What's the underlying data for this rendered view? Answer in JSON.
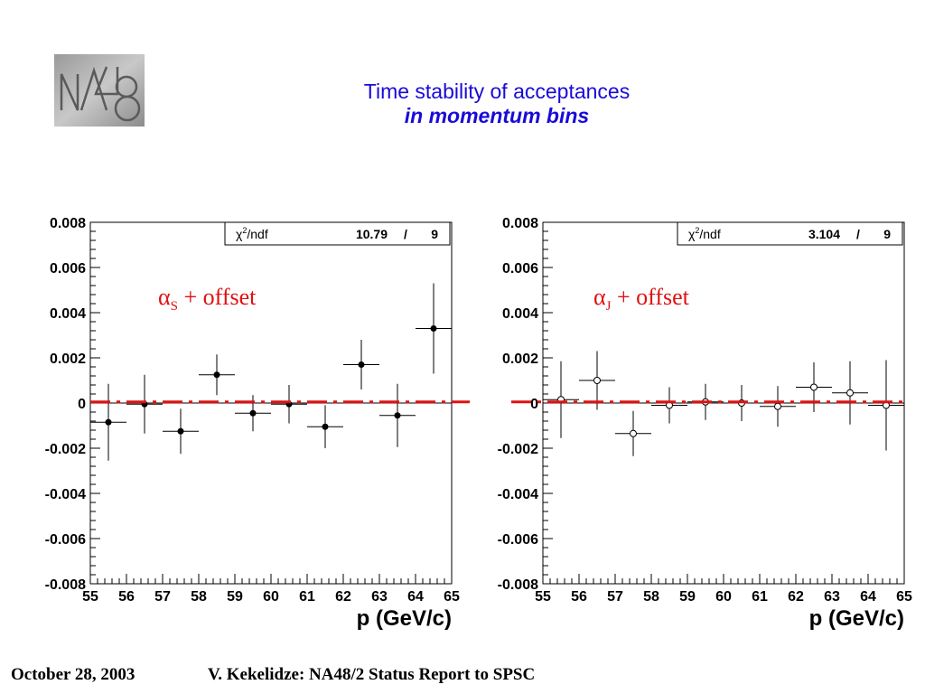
{
  "logo": {
    "label": "NA48"
  },
  "title": {
    "line1": "Time stability of acceptances",
    "line2": "in momentum bins"
  },
  "footer": {
    "date": "October 28, 2003",
    "text": "V. Kekelidze: NA48/2 Status Report to SPSC"
  },
  "colors": {
    "title": "#1a0ad8",
    "fit_line": "#e01010",
    "annotation": "#e01010"
  },
  "chart_data": [
    {
      "type": "scatter",
      "marker": "filled-circle",
      "xlabel": "p (GeV/c)",
      "xlim": [
        55,
        65
      ],
      "ylim": [
        -0.008,
        0.008
      ],
      "x_ticks": [
        "55",
        "56",
        "57",
        "58",
        "59",
        "60",
        "61",
        "62",
        "63",
        "64",
        "65"
      ],
      "y_ticks": [
        "0.008",
        "0.006",
        "0.004",
        "0.002",
        "0",
        "-0.002",
        "-0.004",
        "-0.006",
        "-0.008"
      ],
      "stats": {
        "label_greek": "χ",
        "label_sup": "2",
        "label_rest": "/ndf",
        "chi2": "10.79",
        "sep": "/",
        "ndf": "9"
      },
      "annotation": {
        "greek": "α",
        "sub": "S",
        "rest": " + offset"
      },
      "fit_line": {
        "value": 5e-05,
        "style": "dash-dot"
      },
      "points": [
        {
          "x": 55.5,
          "y": -0.00085,
          "xerr": 0.5,
          "yerr": 0.0017
        },
        {
          "x": 56.5,
          "y": -5e-05,
          "xerr": 0.5,
          "yerr": 0.0013
        },
        {
          "x": 57.5,
          "y": -0.00125,
          "xerr": 0.5,
          "yerr": 0.001
        },
        {
          "x": 58.5,
          "y": 0.00125,
          "xerr": 0.5,
          "yerr": 0.0009
        },
        {
          "x": 59.5,
          "y": -0.00045,
          "xerr": 0.5,
          "yerr": 0.0008
        },
        {
          "x": 60.5,
          "y": -5e-05,
          "xerr": 0.5,
          "yerr": 0.00085
        },
        {
          "x": 61.5,
          "y": -0.00105,
          "xerr": 0.5,
          "yerr": 0.00095
        },
        {
          "x": 62.5,
          "y": 0.0017,
          "xerr": 0.5,
          "yerr": 0.0011
        },
        {
          "x": 63.5,
          "y": -0.00055,
          "xerr": 0.5,
          "yerr": 0.0014
        },
        {
          "x": 64.5,
          "y": 0.0033,
          "xerr": 0.5,
          "yerr": 0.002
        }
      ]
    },
    {
      "type": "scatter",
      "marker": "open-circle",
      "xlabel": "p (GeV/c)",
      "xlim": [
        55,
        65
      ],
      "ylim": [
        -0.008,
        0.008
      ],
      "x_ticks": [
        "55",
        "56",
        "57",
        "58",
        "59",
        "60",
        "61",
        "62",
        "63",
        "64",
        "65"
      ],
      "y_ticks": [
        "0.008",
        "0.006",
        "0.004",
        "0.002",
        "0",
        "-0.002",
        "-0.004",
        "-0.006",
        "-0.008"
      ],
      "stats": {
        "label_greek": "χ",
        "label_sup": "2",
        "label_rest": "/ndf",
        "chi2": "3.104",
        "sep": "/",
        "ndf": "9"
      },
      "annotation": {
        "greek": "α",
        "sub": "J",
        "rest": " + offset"
      },
      "fit_line": {
        "value": 5e-05,
        "style": "dash-dot"
      },
      "points": [
        {
          "x": 55.5,
          "y": 0.00015,
          "xerr": 0.5,
          "yerr": 0.0017
        },
        {
          "x": 56.5,
          "y": 0.001,
          "xerr": 0.5,
          "yerr": 0.0013
        },
        {
          "x": 57.5,
          "y": -0.00135,
          "xerr": 0.5,
          "yerr": 0.001
        },
        {
          "x": 58.5,
          "y": -0.0001,
          "xerr": 0.5,
          "yerr": 0.0008
        },
        {
          "x": 59.5,
          "y": 5e-05,
          "xerr": 0.5,
          "yerr": 0.0008
        },
        {
          "x": 60.5,
          "y": 0.0,
          "xerr": 0.5,
          "yerr": 0.0008
        },
        {
          "x": 61.5,
          "y": -0.00015,
          "xerr": 0.5,
          "yerr": 0.0009
        },
        {
          "x": 62.5,
          "y": 0.0007,
          "xerr": 0.5,
          "yerr": 0.0011
        },
        {
          "x": 63.5,
          "y": 0.00045,
          "xerr": 0.5,
          "yerr": 0.0014
        },
        {
          "x": 64.5,
          "y": -0.0001,
          "xerr": 0.5,
          "yerr": 0.002
        }
      ]
    }
  ]
}
